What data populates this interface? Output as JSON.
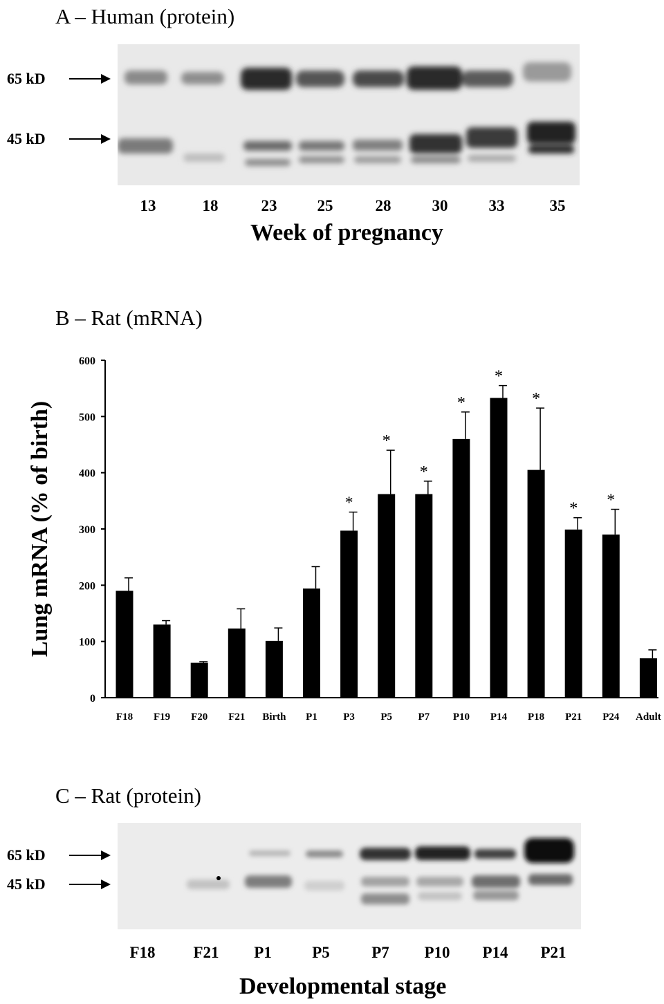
{
  "panelA": {
    "title": "A – Human (protein)",
    "markers": [
      "65 kD",
      "45 kD"
    ],
    "lanes": [
      "13",
      "18",
      "23",
      "25",
      "28",
      "30",
      "33",
      "35"
    ],
    "xlabel": "Week of pregnancy"
  },
  "panelB": {
    "title": "B – Rat (mRNA)"
  },
  "panelC": {
    "title": "C – Rat (protein)",
    "markers": [
      "65 kD",
      "45 kD"
    ],
    "lanes": [
      "F18",
      "F21",
      "P1",
      "P5",
      "P7",
      "P10",
      "P14",
      "P21"
    ],
    "xlabel": "Developmental stage"
  },
  "chart_data": {
    "type": "bar",
    "title": "",
    "categories": [
      "F18",
      "F19",
      "F20",
      "F21",
      "Birth",
      "P1",
      "P3",
      "P5",
      "P7",
      "P10",
      "P14",
      "P18",
      "P21",
      "P24",
      "Adult"
    ],
    "values": [
      190,
      130,
      62,
      123,
      101,
      194,
      297,
      362,
      362,
      460,
      533,
      405,
      299,
      290,
      70
    ],
    "errors": [
      23,
      7,
      2,
      35,
      23,
      39,
      33,
      78,
      23,
      48,
      22,
      110,
      21,
      45,
      15
    ],
    "significant": [
      "",
      "",
      "",
      "",
      "",
      "",
      "*",
      "*",
      "*",
      "*",
      "*",
      "*",
      "*",
      "*",
      ""
    ],
    "ylabel": "Lung mRNA (% of birth)",
    "xlabel": "",
    "ylim": [
      0,
      600
    ],
    "yticks": [
      0,
      100,
      200,
      300,
      400,
      500,
      600
    ],
    "bar_color": "#000000",
    "grid": false
  }
}
